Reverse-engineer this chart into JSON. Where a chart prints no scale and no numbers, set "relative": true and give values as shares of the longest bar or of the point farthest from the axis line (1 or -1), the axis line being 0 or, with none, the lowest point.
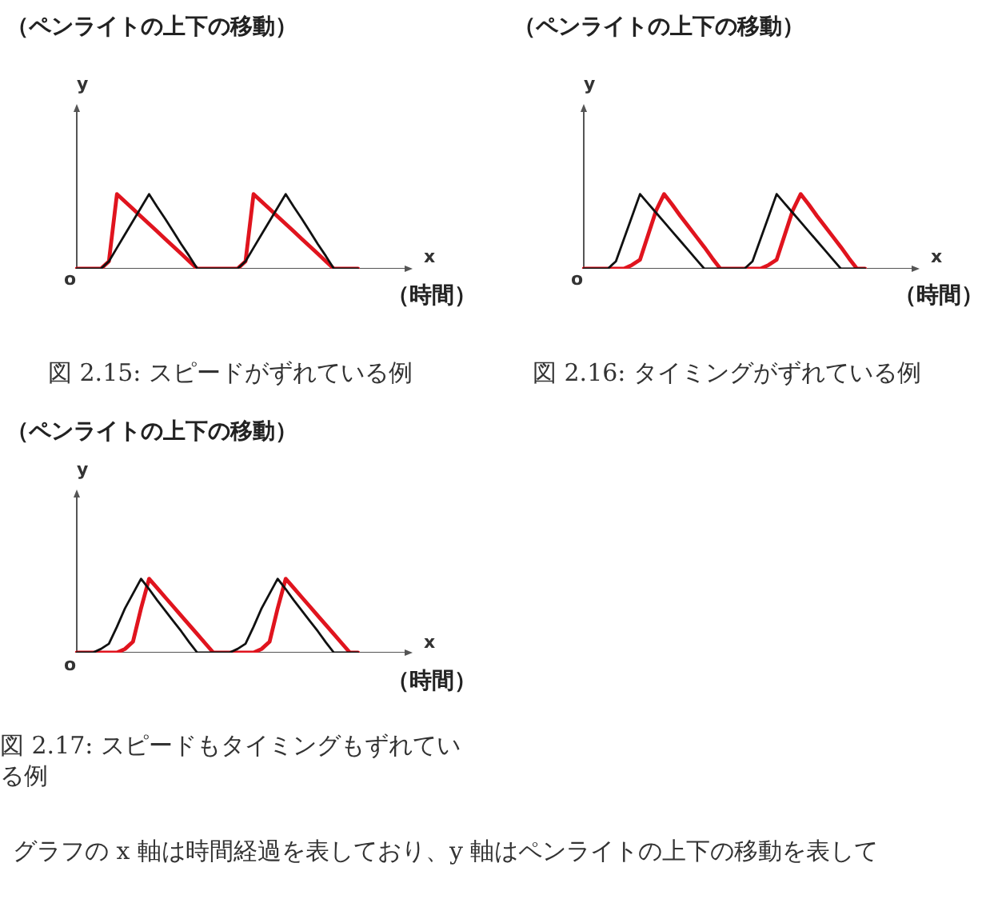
{
  "chart_data": [
    {
      "type": "line",
      "title": "（ペンライトの上下の移動）",
      "xlabel": "x",
      "ylabel": "y",
      "relative": true,
      "annotations": [
        "o",
        "（時間）",
        "図 2.15: スピードがずれている例"
      ],
      "categories": [
        null,
        null,
        null,
        null,
        null,
        null,
        null,
        null,
        null,
        null,
        null,
        null,
        null,
        null,
        null,
        null,
        null,
        null,
        null,
        null,
        null,
        null,
        null,
        null,
        null,
        null,
        null,
        null,
        null,
        null,
        null,
        null,
        null,
        null,
        null,
        null,
        null,
        null,
        null,
        null,
        null,
        null
      ],
      "series": [
        {
          "color": "#111111",
          "values": [
            0,
            0,
            0,
            0,
            0.1,
            0.28,
            0.46,
            0.64,
            0.82,
            1,
            0.83,
            0.67,
            0.5,
            0.33,
            0.17,
            0,
            0,
            0,
            0,
            0,
            0,
            0.1,
            0.28,
            0.46,
            0.64,
            0.82,
            1,
            0.83,
            0.67,
            0.5,
            0.33,
            0.17,
            0,
            0,
            0,
            0,
            null,
            null,
            null,
            null,
            null,
            null
          ]
        },
        {
          "color": "#e0141e",
          "values": [
            0,
            0,
            0,
            0,
            0.1,
            1,
            0.9,
            0.8,
            0.7,
            0.6,
            0.5,
            0.4,
            0.3,
            0.2,
            0.1,
            0,
            0,
            0,
            0,
            0,
            0,
            0.1,
            1,
            0.9,
            0.8,
            0.7,
            0.6,
            0.5,
            0.4,
            0.3,
            0.2,
            0.1,
            0,
            0,
            0,
            0,
            null,
            null,
            null,
            null,
            null,
            null
          ]
        }
      ]
    },
    {
      "type": "line",
      "title": "（ペンライトの上下の移動）",
      "xlabel": "x",
      "ylabel": "y",
      "relative": true,
      "annotations": [
        "o",
        "（時間）",
        "図 2.16: タイミングがずれている例"
      ],
      "categories": [
        null,
        null,
        null,
        null,
        null,
        null,
        null,
        null,
        null,
        null,
        null,
        null,
        null,
        null,
        null,
        null,
        null,
        null,
        null,
        null,
        null,
        null,
        null,
        null,
        null,
        null,
        null,
        null,
        null,
        null,
        null,
        null,
        null,
        null,
        null,
        null,
        null,
        null,
        null,
        null,
        null,
        null
      ],
      "series": [
        {
          "color": "#111111",
          "values": [
            0,
            0,
            0,
            0,
            0.1,
            0.4,
            0.7,
            1,
            0.875,
            0.75,
            0.625,
            0.5,
            0.375,
            0.25,
            0.125,
            0,
            0,
            0,
            0,
            0,
            0,
            0.1,
            0.4,
            0.7,
            1,
            0.875,
            0.75,
            0.625,
            0.5,
            0.375,
            0.25,
            0.125,
            0,
            0,
            0,
            0,
            null,
            null,
            null,
            null,
            null,
            null
          ]
        },
        {
          "color": "#e0141e",
          "values": [
            0,
            0,
            0,
            0,
            0,
            0,
            0.05,
            0.12,
            0.45,
            0.78,
            1,
            0.86,
            0.71,
            0.57,
            0.43,
            0.29,
            0.14,
            0,
            0,
            0,
            0,
            0,
            0,
            0.05,
            0.12,
            0.45,
            0.78,
            1,
            0.86,
            0.71,
            0.57,
            0.43,
            0.29,
            0.14,
            0,
            0,
            null,
            null,
            null,
            null,
            null,
            null
          ]
        }
      ]
    },
    {
      "type": "line",
      "title": "（ペンライトの上下の移動）",
      "xlabel": "x",
      "ylabel": "y",
      "relative": true,
      "annotations": [
        "o",
        "（時間）",
        "図 2.17: スピードもタイミングもずれている例",
        "グラフの x 軸は時間経過を表しており、y 軸はペンライトの上下の移動を表して"
      ],
      "categories": [
        null,
        null,
        null,
        null,
        null,
        null,
        null,
        null,
        null,
        null,
        null,
        null,
        null,
        null,
        null,
        null,
        null,
        null,
        null,
        null,
        null,
        null,
        null,
        null,
        null,
        null,
        null,
        null,
        null,
        null,
        null,
        null,
        null,
        null,
        null,
        null,
        null,
        null,
        null,
        null,
        null,
        null
      ],
      "series": [
        {
          "color": "#111111",
          "values": [
            0,
            0,
            0,
            0.05,
            0.12,
            0.35,
            0.6,
            0.8,
            1,
            0.86,
            0.71,
            0.57,
            0.43,
            0.29,
            0.14,
            0,
            0,
            0,
            0,
            0,
            0.05,
            0.12,
            0.35,
            0.6,
            0.8,
            1,
            0.86,
            0.71,
            0.57,
            0.43,
            0.29,
            0.14,
            0,
            0,
            0,
            0,
            null,
            null,
            null,
            null,
            null,
            null
          ]
        },
        {
          "color": "#e0141e",
          "values": [
            0,
            0,
            0,
            0,
            0,
            0,
            0.05,
            0.15,
            0.6,
            1,
            0.875,
            0.75,
            0.625,
            0.5,
            0.375,
            0.25,
            0.125,
            0,
            0,
            0,
            0,
            0,
            0,
            0.05,
            0.15,
            0.6,
            1,
            0.875,
            0.75,
            0.625,
            0.5,
            0.375,
            0.25,
            0.125,
            0,
            0,
            null,
            null,
            null,
            null,
            null,
            null
          ]
        }
      ]
    }
  ]
}
